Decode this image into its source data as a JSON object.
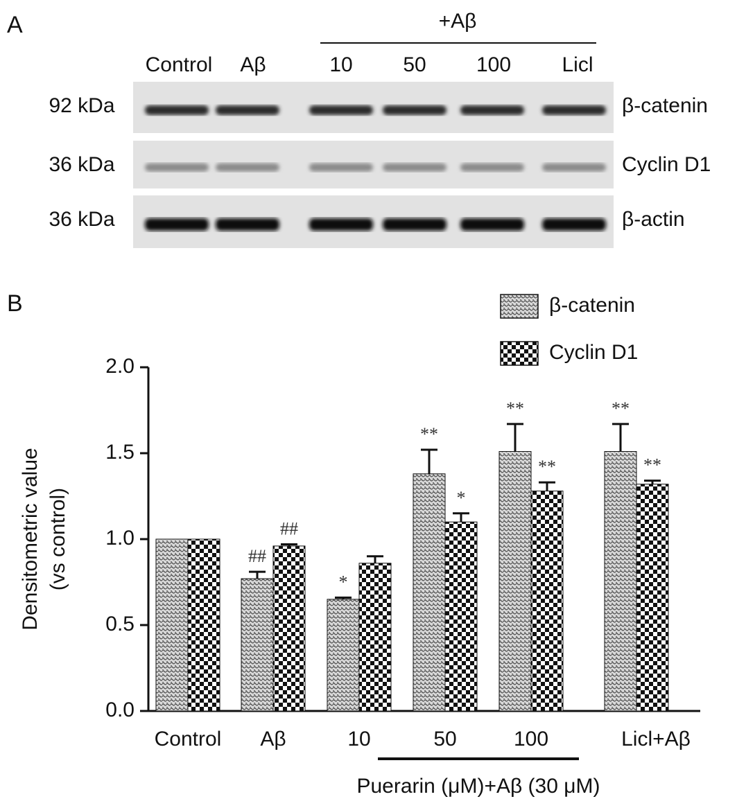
{
  "panel_a": {
    "label": "A",
    "group_label": "+Aβ",
    "lanes": [
      "Control",
      "Aβ",
      "10",
      "50",
      "100",
      "Licl"
    ],
    "rows": [
      {
        "size": "92 kDa",
        "protein": "β-catenin"
      },
      {
        "size": "36 kDa",
        "protein": "Cyclin D1"
      },
      {
        "size": "36 kDa",
        "protein": "β-actin"
      }
    ]
  },
  "chart_data": {
    "type": "bar",
    "panel_label": "B",
    "y_label": [
      "Densitometric value",
      "(vs control)"
    ],
    "categories": [
      "Control",
      "Aβ",
      "10",
      "50",
      "100",
      "Licl+Aβ"
    ],
    "group_label": "Puerarin (μM)+Aβ (30 μM)",
    "series": [
      {
        "name": "β-catenin",
        "values": [
          1.0,
          0.77,
          0.65,
          1.38,
          1.51,
          1.51
        ],
        "errors": [
          0,
          0.04,
          0.01,
          0.14,
          0.16,
          0.16
        ],
        "annotations": [
          null,
          "##",
          "*",
          "**",
          "**",
          "**"
        ]
      },
      {
        "name": "Cyclin D1",
        "values": [
          1.0,
          0.96,
          0.86,
          1.1,
          1.28,
          1.32
        ],
        "errors": [
          0,
          0.01,
          0.04,
          0.05,
          0.05,
          0.02
        ],
        "annotations": [
          null,
          "##",
          null,
          "*",
          "**",
          "**"
        ]
      }
    ],
    "ylim": [
      0,
      2
    ],
    "yticks": [
      {
        "value": 0,
        "label": "0.0"
      },
      {
        "value": 0.5,
        "label": "0.5"
      },
      {
        "value": 1,
        "label": "1.0"
      },
      {
        "value": 1.5,
        "label": "1.5"
      },
      {
        "value": 2,
        "label": "2.0"
      }
    ]
  }
}
